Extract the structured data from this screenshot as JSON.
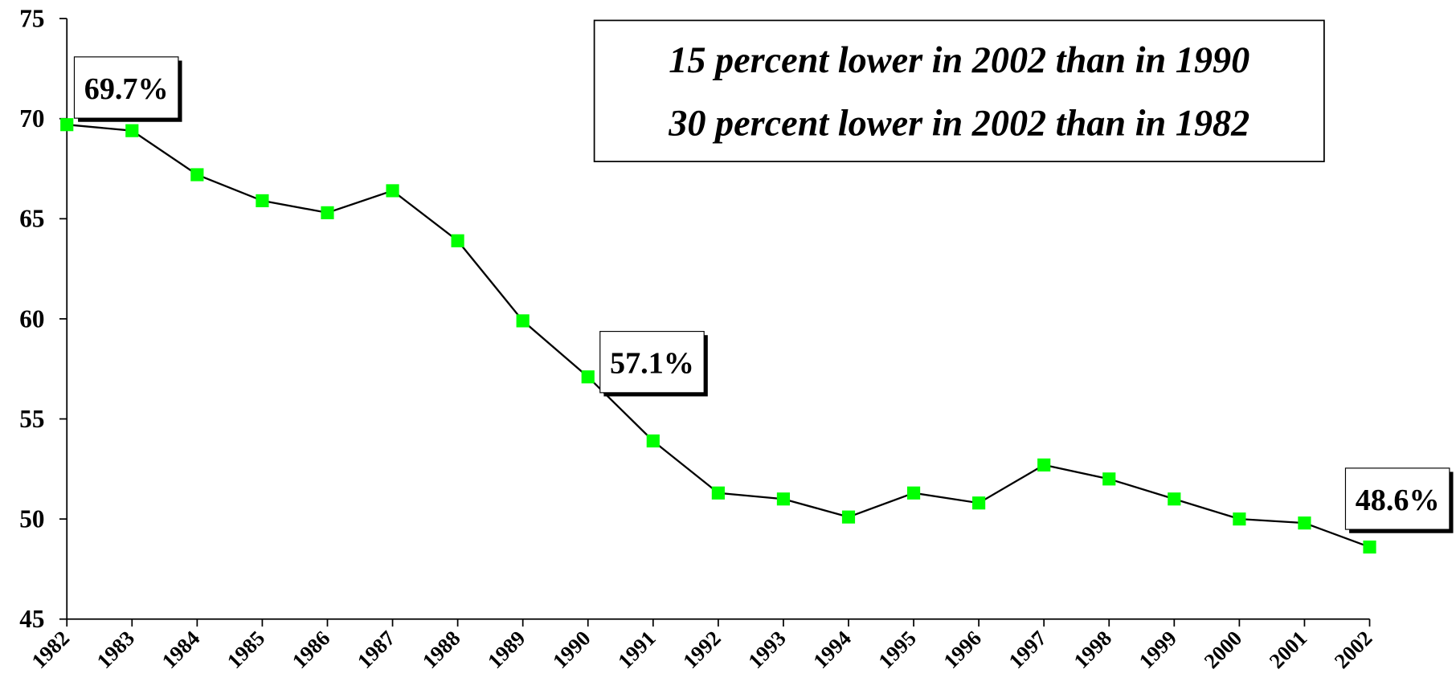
{
  "chart_data": {
    "type": "line",
    "categories": [
      "1982",
      "1983",
      "1984",
      "1985",
      "1986",
      "1987",
      "1988",
      "1989",
      "1990",
      "1991",
      "1992",
      "1993",
      "1994",
      "1995",
      "1996",
      "1997",
      "1998",
      "1999",
      "2000",
      "2001",
      "2002"
    ],
    "series": [
      {
        "color": "#00ff00",
        "values": [
          69.7,
          69.4,
          67.2,
          65.9,
          65.3,
          66.4,
          63.9,
          59.9,
          57.1,
          53.9,
          51.3,
          51.0,
          50.1,
          51.3,
          50.8,
          52.7,
          52.0,
          51.0,
          50.0,
          49.8,
          48.6
        ],
        "value_labels": [
          "69.7%",
          null,
          null,
          null,
          null,
          null,
          null,
          null,
          "57.1%",
          null,
          null,
          null,
          null,
          null,
          null,
          null,
          null,
          null,
          null,
          null,
          "48.6%"
        ]
      }
    ],
    "ylim": [
      45,
      75
    ],
    "yticks": [
      45,
      50,
      55,
      60,
      65,
      70,
      75
    ],
    "grid": false,
    "annotations": [
      "15 percent lower in 2002 than in 1990",
      "30 percent lower in 2002 than in 1982"
    ]
  }
}
